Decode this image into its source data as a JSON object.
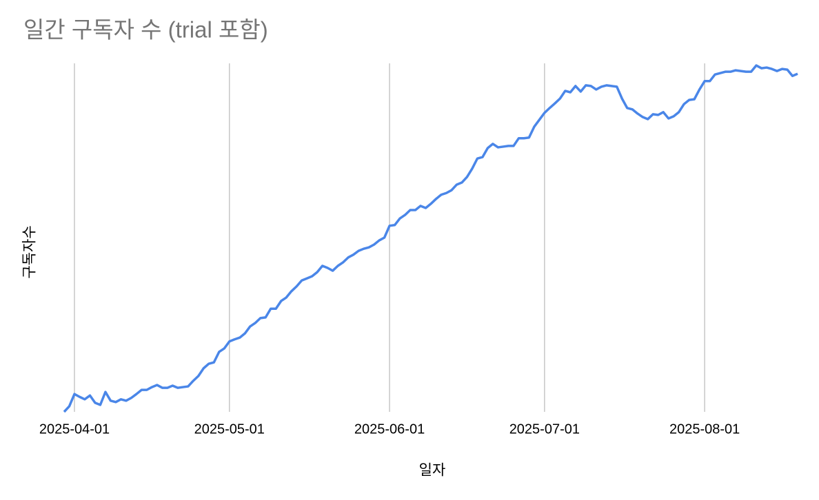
{
  "chart_data": {
    "type": "line",
    "title": "일간 구독자 수 (trial 포함)",
    "x_label": "일자",
    "y_label": "구독자수",
    "color": "#4a86e8",
    "grid": true,
    "xlim": [
      "2025-03-30",
      "2025-08-19"
    ],
    "ylim": [
      0,
      100
    ],
    "xticks": [
      "2025-04-01",
      "2025-05-01",
      "2025-06-01",
      "2025-07-01",
      "2025-08-01"
    ],
    "x": [
      "2025-03-30",
      "2025-03-31",
      "2025-04-01",
      "2025-04-02",
      "2025-04-03",
      "2025-04-04",
      "2025-04-05",
      "2025-04-06",
      "2025-04-07",
      "2025-04-08",
      "2025-04-09",
      "2025-04-10",
      "2025-04-11",
      "2025-04-12",
      "2025-04-13",
      "2025-04-14",
      "2025-04-15",
      "2025-04-16",
      "2025-04-17",
      "2025-04-18",
      "2025-04-19",
      "2025-04-20",
      "2025-04-21",
      "2025-04-22",
      "2025-04-23",
      "2025-04-24",
      "2025-04-25",
      "2025-04-26",
      "2025-04-27",
      "2025-04-28",
      "2025-04-29",
      "2025-04-30",
      "2025-05-01",
      "2025-05-02",
      "2025-05-03",
      "2025-05-04",
      "2025-05-05",
      "2025-05-06",
      "2025-05-07",
      "2025-05-08",
      "2025-05-09",
      "2025-05-10",
      "2025-05-11",
      "2025-05-12",
      "2025-05-13",
      "2025-05-14",
      "2025-05-15",
      "2025-05-16",
      "2025-05-17",
      "2025-05-18",
      "2025-05-19",
      "2025-05-20",
      "2025-05-21",
      "2025-05-22",
      "2025-05-23",
      "2025-05-24",
      "2025-05-25",
      "2025-05-26",
      "2025-05-27",
      "2025-05-28",
      "2025-05-29",
      "2025-05-30",
      "2025-05-31",
      "2025-06-01",
      "2025-06-02",
      "2025-06-03",
      "2025-06-04",
      "2025-06-05",
      "2025-06-06",
      "2025-06-07",
      "2025-06-08",
      "2025-06-09",
      "2025-06-10",
      "2025-06-11",
      "2025-06-12",
      "2025-06-13",
      "2025-06-14",
      "2025-06-15",
      "2025-06-16",
      "2025-06-17",
      "2025-06-18",
      "2025-06-19",
      "2025-06-20",
      "2025-06-21",
      "2025-06-22",
      "2025-06-23",
      "2025-06-24",
      "2025-06-25",
      "2025-06-26",
      "2025-06-27",
      "2025-06-28",
      "2025-06-29",
      "2025-06-30",
      "2025-07-01",
      "2025-07-02",
      "2025-07-03",
      "2025-07-04",
      "2025-07-05",
      "2025-07-06",
      "2025-07-07",
      "2025-07-08",
      "2025-07-09",
      "2025-07-10",
      "2025-07-11",
      "2025-07-12",
      "2025-07-13",
      "2025-07-14",
      "2025-07-15",
      "2025-07-16",
      "2025-07-17",
      "2025-07-18",
      "2025-07-19",
      "2025-07-20",
      "2025-07-21",
      "2025-07-22",
      "2025-07-23",
      "2025-07-24",
      "2025-07-25",
      "2025-07-26",
      "2025-07-27",
      "2025-07-28",
      "2025-07-29",
      "2025-07-30",
      "2025-07-31",
      "2025-08-01",
      "2025-08-02",
      "2025-08-03",
      "2025-08-04",
      "2025-08-05",
      "2025-08-06",
      "2025-08-07",
      "2025-08-08",
      "2025-08-09",
      "2025-08-10",
      "2025-08-11",
      "2025-08-12",
      "2025-08-13",
      "2025-08-14",
      "2025-08-15",
      "2025-08-16",
      "2025-08-17",
      "2025-08-18",
      "2025-08-19"
    ],
    "values": [
      0,
      1.6,
      5.1,
      4.3,
      3.6,
      4.7,
      2.6,
      2.0,
      5.7,
      3.2,
      2.8,
      3.6,
      3.2,
      4.0,
      5.1,
      6.3,
      6.3,
      7.1,
      7.7,
      6.9,
      6.9,
      7.5,
      6.9,
      7.1,
      7.3,
      8.9,
      10.3,
      12.5,
      13.8,
      14.2,
      17.2,
      18.2,
      20.2,
      20.8,
      21.3,
      22.5,
      24.5,
      25.5,
      26.9,
      27.1,
      29.6,
      29.6,
      31.8,
      32.8,
      34.6,
      36.0,
      37.7,
      38.3,
      38.9,
      40.1,
      41.9,
      41.3,
      40.5,
      41.9,
      42.9,
      44.3,
      45.1,
      46.2,
      46.8,
      47.2,
      48.0,
      49.2,
      50.0,
      53.4,
      53.6,
      55.5,
      56.5,
      57.9,
      57.9,
      59.1,
      58.5,
      59.7,
      61.1,
      62.3,
      62.8,
      63.6,
      65.2,
      65.8,
      67.4,
      69.8,
      72.7,
      73.1,
      75.7,
      76.9,
      75.9,
      76.1,
      76.3,
      76.3,
      78.5,
      78.5,
      78.7,
      81.8,
      83.8,
      85.8,
      87.2,
      88.5,
      89.9,
      92.1,
      91.7,
      93.5,
      91.9,
      93.7,
      93.5,
      92.5,
      93.3,
      93.7,
      93.5,
      93.3,
      89.9,
      87.2,
      86.8,
      85.6,
      84.6,
      84.0,
      85.4,
      85.2,
      86.0,
      84.2,
      84.8,
      86.0,
      88.3,
      89.5,
      89.7,
      92.5,
      94.9,
      94.9,
      96.8,
      97.2,
      97.6,
      97.6,
      98.0,
      97.8,
      97.6,
      97.6,
      99.4,
      98.6,
      98.8,
      98.4,
      97.8,
      98.4,
      98.2,
      96.4,
      97.0
    ]
  }
}
